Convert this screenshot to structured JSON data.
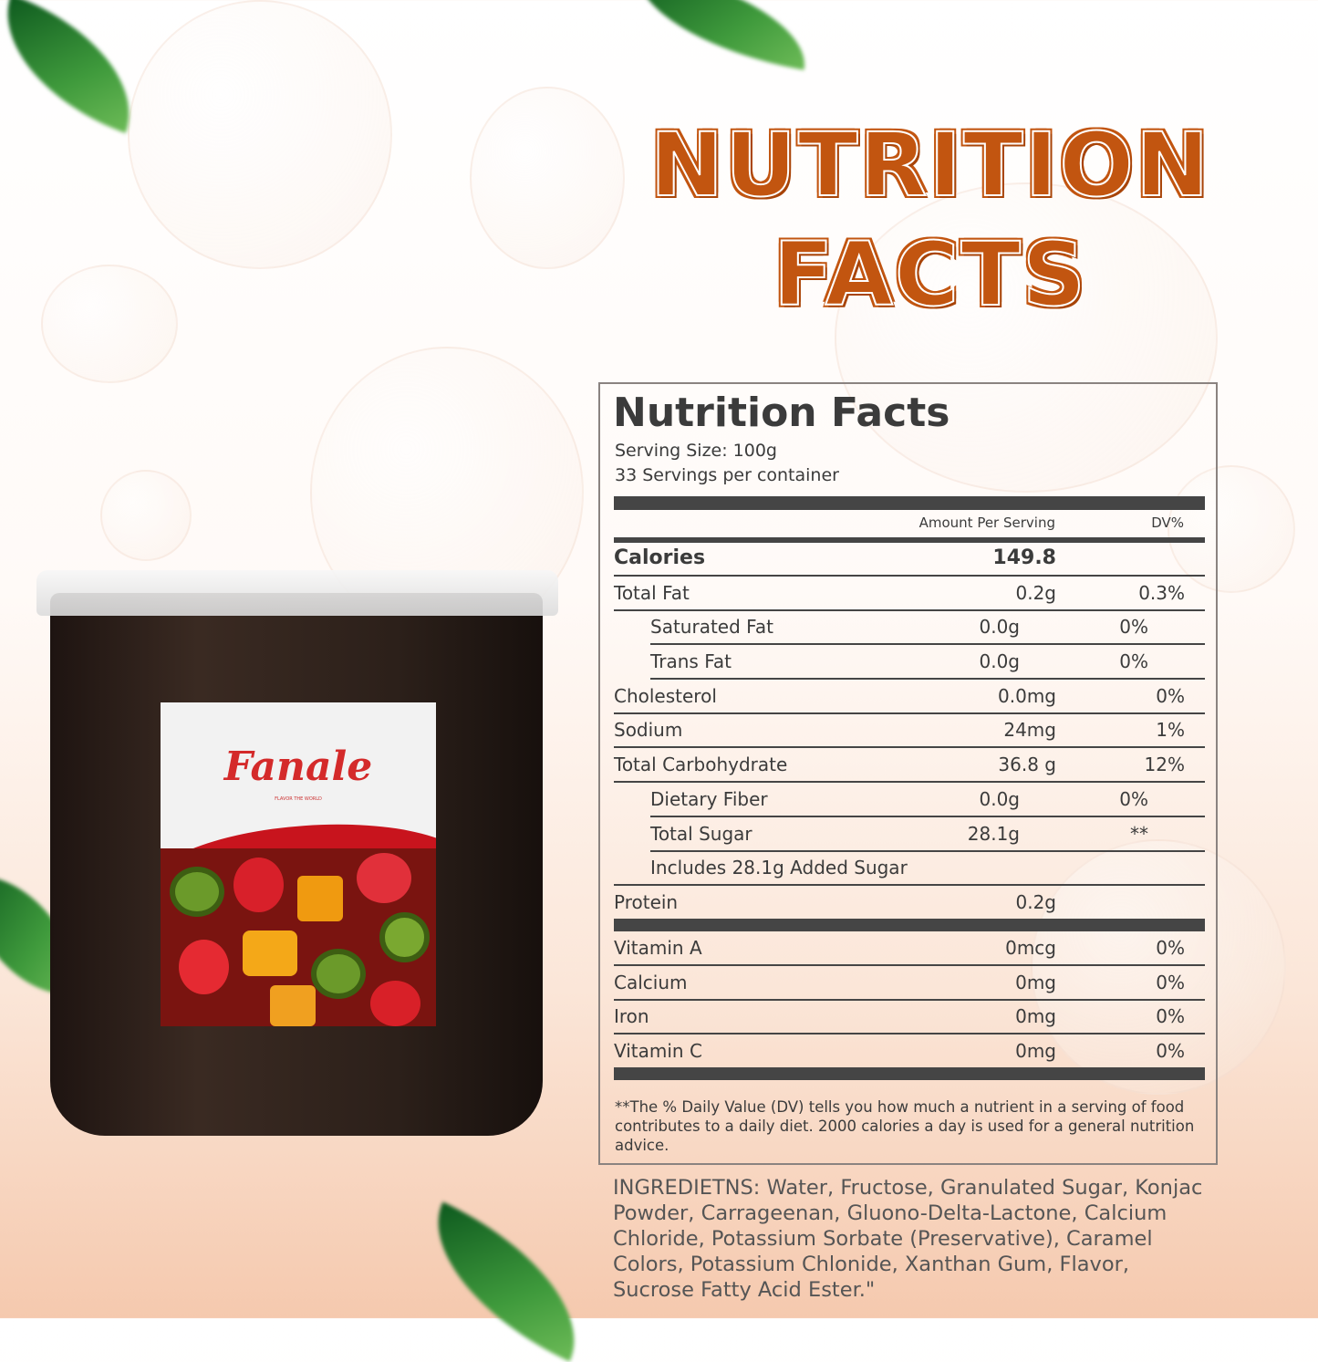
{
  "headline": {
    "line1": "NUTRITION",
    "line2": "FACTS"
  },
  "product": {
    "brand": "Fanale",
    "tagline": "FLAVOR THE WORLD"
  },
  "label": {
    "title": "Nutrition Facts",
    "serving_size": "Serving Size:  100g",
    "servings": "33 Servings per container",
    "col_amount": "Amount Per Serving",
    "col_dv": "DV%",
    "calories": {
      "label": "Calories",
      "value": "149.8"
    },
    "rows": [
      {
        "label": "Total Fat",
        "amount": "0.2g",
        "dv": "0.3%"
      },
      {
        "label": "Saturated Fat",
        "amount": "0.0g",
        "dv": "0%"
      },
      {
        "label": "Trans Fat",
        "amount": "0.0g",
        "dv": "0%"
      },
      {
        "label": "Cholesterol",
        "amount": "0.0mg",
        "dv": "0%"
      },
      {
        "label": "Sodium",
        "amount": "24mg",
        "dv": "1%"
      },
      {
        "label": "Total Carbohydrate",
        "amount": "36.8 g",
        "dv": "12%"
      },
      {
        "label": "Dietary Fiber",
        "amount": "0.0g",
        "dv": "0%"
      },
      {
        "label": "Total Sugar",
        "amount": "28.1g",
        "dv": "**"
      },
      {
        "label": "Includes 28.1g Added Sugar",
        "amount": "",
        "dv": ""
      },
      {
        "label": "Protein",
        "amount": "0.2g",
        "dv": ""
      },
      {
        "label": "Vitamin A",
        "amount": "0mcg",
        "dv": "0%"
      },
      {
        "label": "Calcium",
        "amount": "0mg",
        "dv": "0%"
      },
      {
        "label": "Iron",
        "amount": "0mg",
        "dv": "0%"
      },
      {
        "label": "Vitamin C",
        "amount": "0mg",
        "dv": "0%"
      }
    ],
    "footnote": "**The % Daily Value (DV) tells you how much a nutrient in a serving of food contributes to a daily diet. 2000 calories a  day is used for a general nutrition advice."
  },
  "ingredients": "INGREDIETNS: Water, Fructose, Granulated Sugar, Konjac Powder, Carrageenan, Gluono-Delta-Lactone, Calcium Chloride, Potassium Sorbate (Preservative), Caramel Colors, Potassium Chlonide, Xanthan Gum, Flavor, Sucrose Fatty Acid Ester.\"",
  "colors": {
    "headline": "#c25510",
    "label_text": "#3b3b3b",
    "brand": "#d42a2a"
  }
}
